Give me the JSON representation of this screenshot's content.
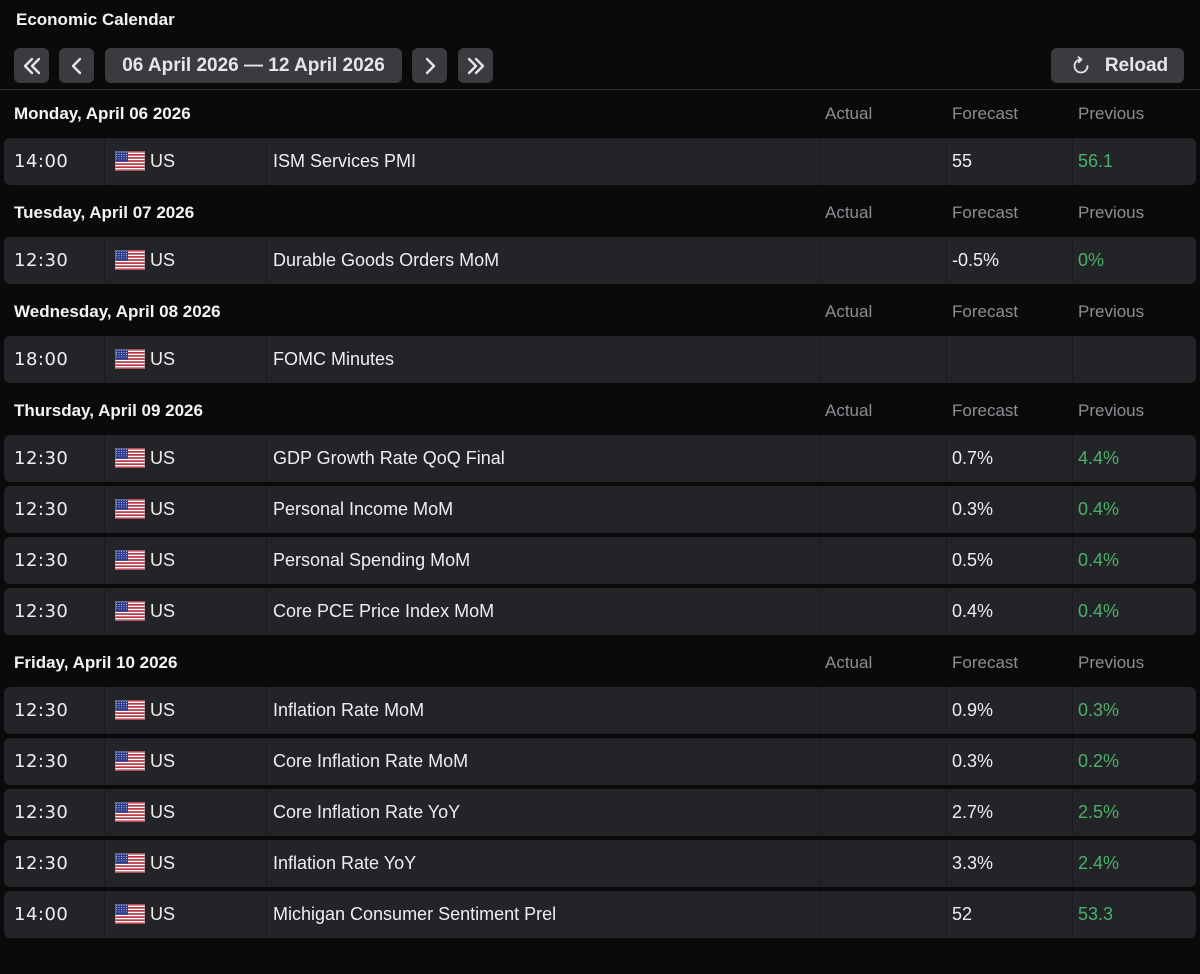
{
  "app": {
    "title": "Economic Calendar"
  },
  "toolbar": {
    "range_label": "06 April 2026 — 12 April 2026",
    "reload_label": "Reload",
    "icons": [
      "double-chevron-left-icon",
      "chevron-left-icon",
      "chevron-right-icon",
      "double-chevron-right-icon",
      "reload-icon"
    ]
  },
  "columns": {
    "actual": "Actual",
    "forecast": "Forecast",
    "previous": "Previous"
  },
  "colors": {
    "previous_positive": "#4caf6a",
    "row_bg": "#232428",
    "page_bg": "#0a0a0b"
  },
  "days": [
    {
      "label": "Monday, April 06 2026",
      "events": [
        {
          "time": "14:00",
          "country": "US",
          "event": "ISM Services PMI",
          "actual": "",
          "forecast": "55",
          "previous": "56.1"
        }
      ]
    },
    {
      "label": "Tuesday, April 07 2026",
      "events": [
        {
          "time": "12:30",
          "country": "US",
          "event": "Durable Goods Orders MoM",
          "actual": "",
          "forecast": "-0.5%",
          "previous": "0%"
        }
      ]
    },
    {
      "label": "Wednesday, April 08 2026",
      "events": [
        {
          "time": "18:00",
          "country": "US",
          "event": "FOMC Minutes",
          "actual": "",
          "forecast": "",
          "previous": ""
        }
      ]
    },
    {
      "label": "Thursday, April 09 2026",
      "events": [
        {
          "time": "12:30",
          "country": "US",
          "event": "GDP Growth Rate QoQ Final",
          "actual": "",
          "forecast": "0.7%",
          "previous": "4.4%"
        },
        {
          "time": "12:30",
          "country": "US",
          "event": "Personal Income MoM",
          "actual": "",
          "forecast": "0.3%",
          "previous": "0.4%"
        },
        {
          "time": "12:30",
          "country": "US",
          "event": "Personal Spending MoM",
          "actual": "",
          "forecast": "0.5%",
          "previous": "0.4%"
        },
        {
          "time": "12:30",
          "country": "US",
          "event": "Core PCE Price Index MoM",
          "actual": "",
          "forecast": "0.4%",
          "previous": "0.4%"
        }
      ]
    },
    {
      "label": "Friday, April 10 2026",
      "events": [
        {
          "time": "12:30",
          "country": "US",
          "event": "Inflation Rate MoM",
          "actual": "",
          "forecast": "0.9%",
          "previous": "0.3%"
        },
        {
          "time": "12:30",
          "country": "US",
          "event": "Core Inflation Rate MoM",
          "actual": "",
          "forecast": "0.3%",
          "previous": "0.2%"
        },
        {
          "time": "12:30",
          "country": "US",
          "event": "Core Inflation Rate YoY",
          "actual": "",
          "forecast": "2.7%",
          "previous": "2.5%"
        },
        {
          "time": "12:30",
          "country": "US",
          "event": "Inflation Rate YoY",
          "actual": "",
          "forecast": "3.3%",
          "previous": "2.4%"
        },
        {
          "time": "14:00",
          "country": "US",
          "event": "Michigan Consumer Sentiment Prel",
          "actual": "",
          "forecast": "52",
          "previous": "53.3"
        }
      ]
    }
  ]
}
